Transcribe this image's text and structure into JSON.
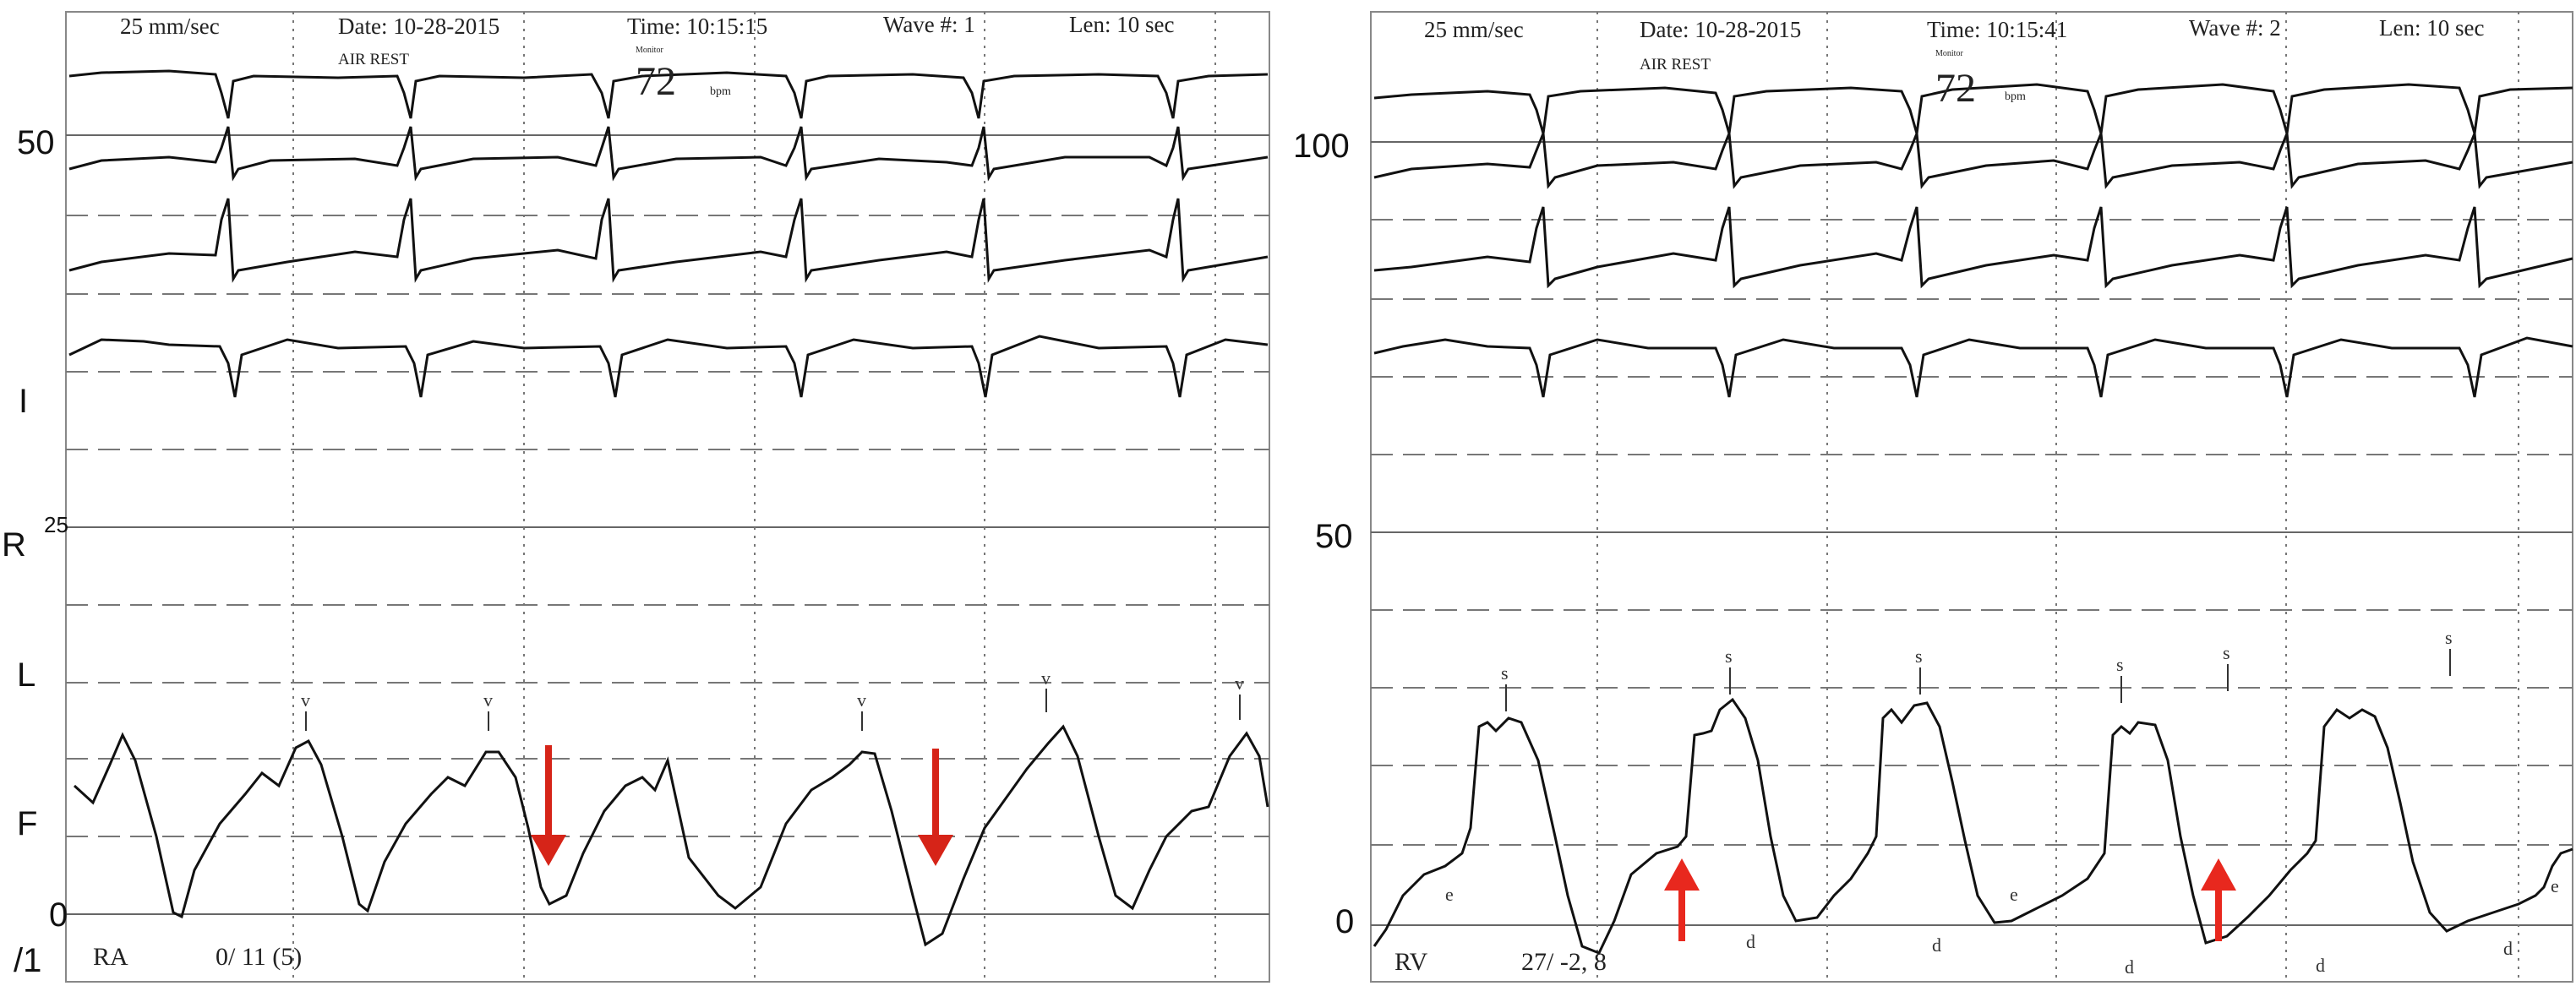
{
  "colors": {
    "grid": "#777777",
    "trace": "#111111",
    "arrow": "#e8281e",
    "paper": "#ffffff"
  },
  "left": {
    "header": {
      "speed": "25 mm/sec",
      "date": "Date: 10-28-2015",
      "time": "Time: 10:15:15",
      "wave": "Wave #: 1",
      "length": "Len: 10 sec",
      "condition": "AIR REST",
      "monitor": "Monitor",
      "hr": "72",
      "hr_unit": "bpm"
    },
    "scale": {
      "label_50": "50",
      "label_25": "25",
      "label_0": "0",
      "label_range": "/1"
    },
    "leads": {
      "i": "I",
      "r": "R",
      "l": "L",
      "f": "F"
    },
    "wave_marker": "v",
    "footer": {
      "chamber": "RA",
      "pressure": "0/ 11 (5)"
    },
    "arrows": 2
  },
  "right": {
    "header": {
      "speed": "25 mm/sec",
      "date": "Date: 10-28-2015",
      "time": "Time: 10:15:41",
      "wave": "Wave #: 2",
      "length": "Len: 10 sec",
      "condition": "AIR REST",
      "monitor": "Monitor",
      "hr": "72",
      "hr_unit": "bpm"
    },
    "scale": {
      "label_100": "100",
      "label_50": "50",
      "label_0": "0"
    },
    "wave_marker_s": "s",
    "wave_marker_e": "e",
    "wave_marker_d": "d",
    "footer": {
      "chamber": "RV",
      "pressure": "27/ -2, 8"
    },
    "arrows": 2
  }
}
